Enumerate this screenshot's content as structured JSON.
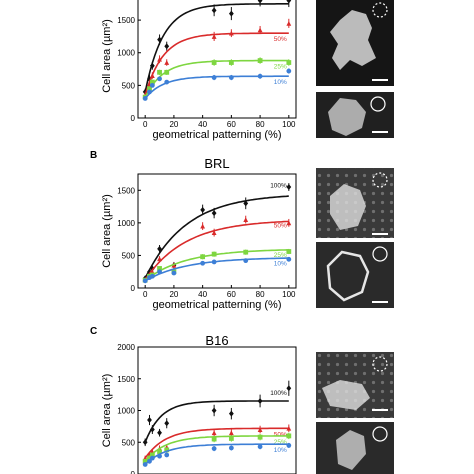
{
  "colors": {
    "100%": "#111111",
    "50%": "#d92b2b",
    "25%": "#7ed640",
    "10%": "#3d7fd6"
  },
  "chart_data": [
    {
      "type": "scatter",
      "panel_label": "",
      "title": "",
      "xlabel": "geometrical patterning (%)",
      "ylabel": "Cell area (µm²)",
      "xlim": [
        -5,
        105
      ],
      "ylim": [
        0,
        1900
      ],
      "xticks": [
        0,
        20,
        40,
        60,
        80,
        100
      ],
      "yticks": [
        0,
        500,
        1000,
        1500
      ],
      "grid": false,
      "series": [
        {
          "name": "100%",
          "x": [
            0,
            3,
            5,
            10,
            15,
            48,
            60,
            80,
            100
          ],
          "y": [
            400,
            600,
            800,
            1200,
            1100,
            1650,
            1600,
            1800,
            1800
          ],
          "err": [
            50,
            60,
            60,
            80,
            70,
            90,
            100,
            90,
            100
          ],
          "fit": {
            "plateau": 1750,
            "k": 0.08
          }
        },
        {
          "name": "50%",
          "x": [
            0,
            3,
            5,
            10,
            15,
            48,
            60,
            80,
            100
          ],
          "y": [
            350,
            500,
            650,
            900,
            850,
            1250,
            1300,
            1350,
            1450
          ],
          "err": [
            40,
            40,
            50,
            60,
            50,
            70,
            60,
            60,
            70
          ],
          "fit": {
            "plateau": 1300,
            "k": 0.08
          }
        },
        {
          "name": "25%",
          "x": [
            0,
            3,
            5,
            10,
            15,
            48,
            60,
            80,
            100
          ],
          "y": [
            320,
            450,
            550,
            700,
            700,
            850,
            850,
            880,
            850
          ],
          "err": [
            30,
            30,
            40,
            40,
            40,
            50,
            50,
            50,
            50
          ],
          "fit": {
            "plateau": 880,
            "k": 0.08
          }
        },
        {
          "name": "10%",
          "x": [
            0,
            3,
            5,
            10,
            15,
            48,
            60,
            80,
            100
          ],
          "y": [
            300,
            400,
            500,
            600,
            550,
            620,
            620,
            640,
            720
          ],
          "err": [
            30,
            30,
            30,
            30,
            30,
            40,
            40,
            40,
            40
          ],
          "fit": {
            "plateau": 640,
            "k": 0.08
          }
        }
      ]
    },
    {
      "type": "scatter",
      "panel_label": "B",
      "title": "BRL",
      "xlabel": "geometrical patterning (%)",
      "ylabel": "Cell area (µm²)",
      "xlim": [
        -5,
        105
      ],
      "ylim": [
        0,
        1750
      ],
      "xticks": [
        0,
        20,
        40,
        60,
        80,
        100
      ],
      "yticks": [
        0,
        500,
        1000,
        1500
      ],
      "grid": false,
      "series": [
        {
          "name": "100%",
          "x": [
            0,
            3,
            5,
            10,
            20,
            40,
            48,
            70,
            100
          ],
          "y": [
            150,
            250,
            300,
            600,
            350,
            1200,
            1150,
            1300,
            1550
          ],
          "err": [
            30,
            40,
            40,
            60,
            50,
            80,
            80,
            90,
            60
          ],
          "fit": {
            "plateau": 1450,
            "k": 0.035
          }
        },
        {
          "name": "50%",
          "x": [
            0,
            3,
            5,
            10,
            20,
            40,
            48,
            70,
            100
          ],
          "y": [
            130,
            200,
            250,
            450,
            350,
            950,
            850,
            1050,
            1000
          ],
          "err": [
            20,
            30,
            30,
            40,
            40,
            60,
            60,
            60,
            60
          ],
          "fit": {
            "plateau": 1050,
            "k": 0.035
          }
        },
        {
          "name": "25%",
          "x": [
            0,
            3,
            5,
            10,
            20,
            40,
            48,
            70,
            100
          ],
          "y": [
            120,
            180,
            200,
            300,
            250,
            480,
            520,
            550,
            560
          ],
          "err": [
            20,
            20,
            20,
            30,
            30,
            40,
            40,
            40,
            40
          ],
          "fit": {
            "plateau": 600,
            "k": 0.035
          }
        },
        {
          "name": "10%",
          "x": [
            0,
            3,
            5,
            10,
            20,
            40,
            48,
            70,
            100
          ],
          "y": [
            110,
            160,
            180,
            250,
            230,
            380,
            400,
            420,
            440
          ],
          "err": [
            20,
            20,
            20,
            30,
            30,
            30,
            30,
            30,
            30
          ],
          "fit": {
            "plateau": 470,
            "k": 0.035
          }
        }
      ]
    },
    {
      "type": "scatter",
      "panel_label": "C",
      "title": "B16",
      "xlabel": "",
      "ylabel": "Cell area (µm²)",
      "xlim": [
        -5,
        105
      ],
      "ylim": [
        0,
        2000
      ],
      "xticks": [],
      "yticks": [
        0,
        500,
        1000,
        1500,
        2000
      ],
      "grid": false,
      "series": [
        {
          "name": "100%",
          "x": [
            0,
            3,
            5,
            10,
            15,
            48,
            60,
            80,
            100
          ],
          "y": [
            500,
            850,
            700,
            650,
            800,
            1000,
            950,
            1150,
            1350
          ],
          "err": [
            60,
            80,
            70,
            60,
            80,
            90,
            90,
            100,
            120
          ],
          "fit": {
            "plateau": 1150,
            "k": 0.09
          }
        },
        {
          "name": "50%",
          "x": [
            0,
            3,
            5,
            10,
            15,
            48,
            60,
            80,
            100
          ],
          "y": [
            250,
            300,
            350,
            400,
            420,
            650,
            650,
            700,
            720
          ],
          "err": [
            40,
            40,
            40,
            50,
            50,
            60,
            60,
            60,
            60
          ],
          "fit": {
            "plateau": 720,
            "k": 0.07
          }
        },
        {
          "name": "25%",
          "x": [
            0,
            3,
            5,
            10,
            15,
            48,
            60,
            80,
            100
          ],
          "y": [
            200,
            250,
            300,
            350,
            380,
            550,
            560,
            580,
            600
          ],
          "err": [
            30,
            30,
            30,
            40,
            40,
            50,
            50,
            50,
            50
          ],
          "fit": {
            "plateau": 600,
            "k": 0.07
          }
        },
        {
          "name": "10%",
          "x": [
            0,
            3,
            5,
            10,
            15,
            48,
            60,
            80,
            100
          ],
          "y": [
            150,
            200,
            250,
            280,
            300,
            400,
            410,
            430,
            450
          ],
          "err": [
            30,
            30,
            30,
            30,
            30,
            40,
            40,
            40,
            40
          ],
          "fit": {
            "plateau": 470,
            "k": 0.07
          }
        }
      ]
    }
  ]
}
